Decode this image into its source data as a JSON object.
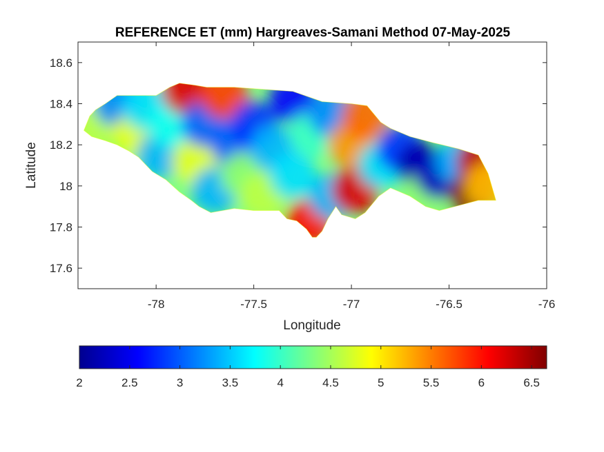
{
  "chart_data": {
    "type": "heatmap",
    "title": "REFERENCE ET (mm) Hargreaves-Samani Method  07-May-2025",
    "xlabel": "Longitude",
    "ylabel": "Latitude",
    "xlim": [
      -78.4,
      -76
    ],
    "ylim": [
      17.5,
      18.7
    ],
    "xticks": [
      -78,
      -77.5,
      -77,
      -76.5,
      -76
    ],
    "xtick_labels": [
      "-78",
      "-77.5",
      "-77",
      "-76.5",
      "-76"
    ],
    "yticks": [
      17.6,
      17.8,
      18,
      18.2,
      18.4,
      18.6
    ],
    "ytick_labels": [
      "17.6",
      "17.8",
      "18",
      "18.2",
      "18.4",
      "18.6"
    ],
    "grid": false,
    "colormap": "jet",
    "colorbar": {
      "location": "bottom",
      "range": [
        2,
        6.65
      ],
      "ticks": [
        2,
        2.5,
        3,
        3.5,
        4,
        4.5,
        5,
        5.5,
        6,
        6.5
      ],
      "tick_labels": [
        "2",
        "2.5",
        "3",
        "3.5",
        "4",
        "4.5",
        "5",
        "5.5",
        "6",
        "6.5"
      ]
    },
    "island_outline": [
      [
        -78.37,
        18.27
      ],
      [
        -78.34,
        18.34
      ],
      [
        -78.31,
        18.37
      ],
      [
        -78.26,
        18.4
      ],
      [
        -78.2,
        18.44
      ],
      [
        -78.12,
        18.44
      ],
      [
        -78.0,
        18.44
      ],
      [
        -77.93,
        18.48
      ],
      [
        -77.88,
        18.5
      ],
      [
        -77.8,
        18.49
      ],
      [
        -77.74,
        18.48
      ],
      [
        -77.6,
        18.48
      ],
      [
        -77.45,
        18.47
      ],
      [
        -77.3,
        18.46
      ],
      [
        -77.15,
        18.41
      ],
      [
        -77.0,
        18.4
      ],
      [
        -76.92,
        18.39
      ],
      [
        -76.85,
        18.31
      ],
      [
        -76.8,
        18.28
      ],
      [
        -76.7,
        18.24
      ],
      [
        -76.58,
        18.21
      ],
      [
        -76.45,
        18.18
      ],
      [
        -76.35,
        18.15
      ],
      [
        -76.3,
        18.06
      ],
      [
        -76.26,
        17.93
      ],
      [
        -76.35,
        17.93
      ],
      [
        -76.47,
        17.9
      ],
      [
        -76.55,
        17.88
      ],
      [
        -76.62,
        17.9
      ],
      [
        -76.7,
        17.95
      ],
      [
        -76.8,
        17.99
      ],
      [
        -76.86,
        17.95
      ],
      [
        -76.93,
        17.87
      ],
      [
        -76.98,
        17.84
      ],
      [
        -77.05,
        17.86
      ],
      [
        -77.08,
        17.9
      ],
      [
        -77.12,
        17.84
      ],
      [
        -77.15,
        17.78
      ],
      [
        -77.18,
        17.75
      ],
      [
        -77.2,
        17.75
      ],
      [
        -77.23,
        17.79
      ],
      [
        -77.28,
        17.83
      ],
      [
        -77.33,
        17.84
      ],
      [
        -77.37,
        17.88
      ],
      [
        -77.5,
        17.88
      ],
      [
        -77.6,
        17.89
      ],
      [
        -77.72,
        17.87
      ],
      [
        -77.78,
        17.9
      ],
      [
        -77.82,
        17.93
      ],
      [
        -77.88,
        17.97
      ],
      [
        -77.95,
        18.03
      ],
      [
        -78.02,
        18.07
      ],
      [
        -78.09,
        18.14
      ],
      [
        -78.14,
        18.17
      ],
      [
        -78.2,
        18.2
      ],
      [
        -78.26,
        18.22
      ],
      [
        -78.33,
        18.24
      ]
    ],
    "field_anchors": [
      {
        "lon": -78.3,
        "lat": 18.3,
        "value": 4.6
      },
      {
        "lon": -78.2,
        "lat": 18.4,
        "value": 3.2
      },
      {
        "lon": -78.1,
        "lat": 18.25,
        "value": 4.8
      },
      {
        "lon": -78.05,
        "lat": 18.38,
        "value": 3.6
      },
      {
        "lon": -77.98,
        "lat": 18.15,
        "value": 3.4
      },
      {
        "lon": -77.92,
        "lat": 18.3,
        "value": 3.8
      },
      {
        "lon": -77.85,
        "lat": 18.46,
        "value": 6.2
      },
      {
        "lon": -77.8,
        "lat": 18.12,
        "value": 4.8
      },
      {
        "lon": -77.75,
        "lat": 18.3,
        "value": 3.0
      },
      {
        "lon": -77.7,
        "lat": 17.98,
        "value": 3.4
      },
      {
        "lon": -77.65,
        "lat": 18.44,
        "value": 5.8
      },
      {
        "lon": -77.6,
        "lat": 18.2,
        "value": 3.0
      },
      {
        "lon": -77.55,
        "lat": 18.05,
        "value": 4.4
      },
      {
        "lon": -77.5,
        "lat": 18.3,
        "value": 2.8
      },
      {
        "lon": -77.45,
        "lat": 17.95,
        "value": 4.6
      },
      {
        "lon": -77.4,
        "lat": 18.18,
        "value": 3.4
      },
      {
        "lon": -77.3,
        "lat": 18.42,
        "value": 2.6
      },
      {
        "lon": -77.3,
        "lat": 18.05,
        "value": 3.6
      },
      {
        "lon": -77.22,
        "lat": 17.82,
        "value": 6.0
      },
      {
        "lon": -77.2,
        "lat": 18.25,
        "value": 4.0
      },
      {
        "lon": -77.1,
        "lat": 18.35,
        "value": 3.2
      },
      {
        "lon": -77.1,
        "lat": 17.95,
        "value": 3.4
      },
      {
        "lon": -77.0,
        "lat": 18.2,
        "value": 5.4
      },
      {
        "lon": -76.98,
        "lat": 17.98,
        "value": 6.2
      },
      {
        "lon": -76.93,
        "lat": 18.34,
        "value": 5.6
      },
      {
        "lon": -76.85,
        "lat": 18.1,
        "value": 3.6
      },
      {
        "lon": -76.75,
        "lat": 18.18,
        "value": 2.8
      },
      {
        "lon": -76.65,
        "lat": 18.1,
        "value": 2.2
      },
      {
        "lon": -76.62,
        "lat": 17.95,
        "value": 4.4
      },
      {
        "lon": -76.55,
        "lat": 18.05,
        "value": 2.3
      },
      {
        "lon": -76.45,
        "lat": 18.12,
        "value": 3.4
      },
      {
        "lon": -76.38,
        "lat": 17.96,
        "value": 6.6
      },
      {
        "lon": -76.34,
        "lat": 18.12,
        "value": 6.3
      },
      {
        "lon": -76.3,
        "lat": 18.0,
        "value": 5.2
      }
    ]
  }
}
